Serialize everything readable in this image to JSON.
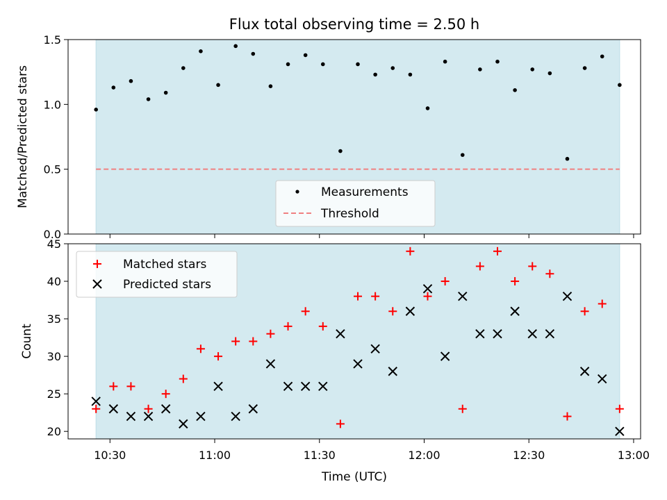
{
  "figure": {
    "title": "Flux total observing time = 2.50 h",
    "xlabel": "Time (UTC)",
    "shade_color": "#d4eaf0",
    "x_ticks": [
      "10:30",
      "11:00",
      "11:30",
      "12:00",
      "12:30",
      "13:00"
    ]
  },
  "chart_data": [
    {
      "type": "scatter",
      "ylabel": "Matched/Predicted stars",
      "ylim": [
        0,
        1.5
      ],
      "yticks": [
        "0.0",
        "0.5",
        "1.0",
        "1.5"
      ],
      "x": [
        "10:26",
        "10:31",
        "10:36",
        "10:41",
        "10:46",
        "10:51",
        "10:56",
        "11:01",
        "11:06",
        "11:11",
        "11:16",
        "11:21",
        "11:26",
        "11:31",
        "11:36",
        "11:41",
        "11:46",
        "11:51",
        "11:56",
        "12:01",
        "12:06",
        "12:11",
        "12:16",
        "12:21",
        "12:26",
        "12:31",
        "12:36",
        "12:41",
        "12:46",
        "12:51",
        "12:56"
      ],
      "series": [
        {
          "name": "Measurements",
          "color": "#000000",
          "values": [
            0.96,
            1.13,
            1.18,
            1.04,
            1.09,
            1.28,
            1.41,
            1.15,
            1.45,
            1.39,
            1.14,
            1.31,
            1.38,
            1.31,
            0.64,
            1.31,
            1.23,
            1.28,
            1.23,
            0.97,
            1.33,
            0.61,
            1.27,
            1.33,
            1.11,
            1.27,
            1.24,
            0.58,
            1.28,
            1.37,
            1.15
          ]
        }
      ],
      "threshold": {
        "name": "Threshold",
        "value": 0.5,
        "color": "#f08080"
      },
      "legend": "lower-center"
    },
    {
      "type": "scatter",
      "ylabel": "Count",
      "ylim": [
        19,
        45
      ],
      "yticks": [
        "20",
        "25",
        "30",
        "35",
        "40",
        "45"
      ],
      "x": [
        "10:26",
        "10:31",
        "10:36",
        "10:41",
        "10:46",
        "10:51",
        "10:56",
        "11:01",
        "11:06",
        "11:11",
        "11:16",
        "11:21",
        "11:26",
        "11:31",
        "11:36",
        "11:41",
        "11:46",
        "11:51",
        "11:56",
        "12:01",
        "12:06",
        "12:11",
        "12:16",
        "12:21",
        "12:26",
        "12:31",
        "12:36",
        "12:41",
        "12:46",
        "12:51",
        "12:56"
      ],
      "series": [
        {
          "name": "Matched stars",
          "marker": "plus",
          "color": "#ff0000",
          "values": [
            23,
            26,
            26,
            23,
            25,
            27,
            31,
            30,
            32,
            32,
            33,
            34,
            36,
            34,
            21,
            38,
            38,
            36,
            44,
            38,
            40,
            23,
            42,
            44,
            40,
            42,
            41,
            22,
            36,
            37,
            23
          ]
        },
        {
          "name": "Predicted stars",
          "marker": "x",
          "color": "#000000",
          "values": [
            24,
            23,
            22,
            22,
            23,
            21,
            22,
            26,
            22,
            23,
            29,
            26,
            26,
            26,
            33,
            29,
            31,
            28,
            36,
            39,
            30,
            38,
            33,
            33,
            36,
            33,
            33,
            38,
            28,
            27,
            20
          ]
        }
      ],
      "legend": "upper-left"
    }
  ]
}
